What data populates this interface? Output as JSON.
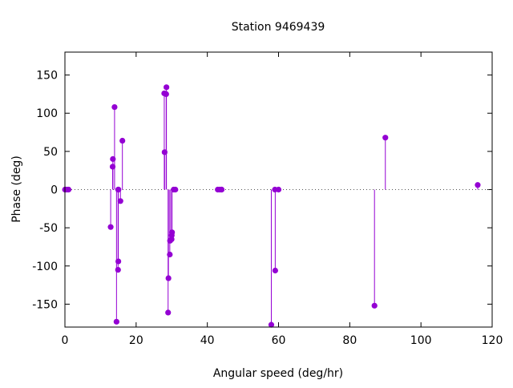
{
  "chart_data": {
    "type": "stem",
    "title": "Station 9469439",
    "xlabel": "Angular speed (deg/hr)",
    "ylabel": "Phase (deg)",
    "xlim": [
      0,
      120
    ],
    "ylim": [
      -180,
      180
    ],
    "xticks": [
      0,
      20,
      40,
      60,
      80,
      100,
      120
    ],
    "yticks": [
      -150,
      -100,
      -50,
      0,
      50,
      100,
      150
    ],
    "grid": false,
    "zero_line": "dotted",
    "series_color": "#9400d3",
    "x": [
      0.04,
      0.08,
      0.54,
      1.02,
      12.85,
      13.4,
      13.47,
      13.94,
      14.49,
      14.92,
      14.96,
      15.0,
      15.04,
      15.59,
      16.14,
      27.9,
      28.0,
      28.44,
      28.51,
      28.98,
      29.08,
      29.46,
      29.53,
      29.96,
      30.0,
      30.08,
      30.54,
      31.02,
      42.93,
      43.48,
      43.94,
      44.03,
      57.97,
      58.98,
      59.07,
      60.0,
      86.95,
      90.0,
      115.94
    ],
    "y": [
      0,
      0,
      0,
      0,
      -49,
      30,
      40,
      108,
      -173,
      -105,
      0,
      -94,
      0,
      -15,
      64,
      126,
      49,
      125,
      134,
      -161,
      -116,
      -85,
      -67,
      -65,
      -60,
      -56,
      0,
      0,
      0,
      0,
      0,
      0,
      -177,
      0,
      -106,
      0,
      -152,
      68,
      6
    ]
  }
}
